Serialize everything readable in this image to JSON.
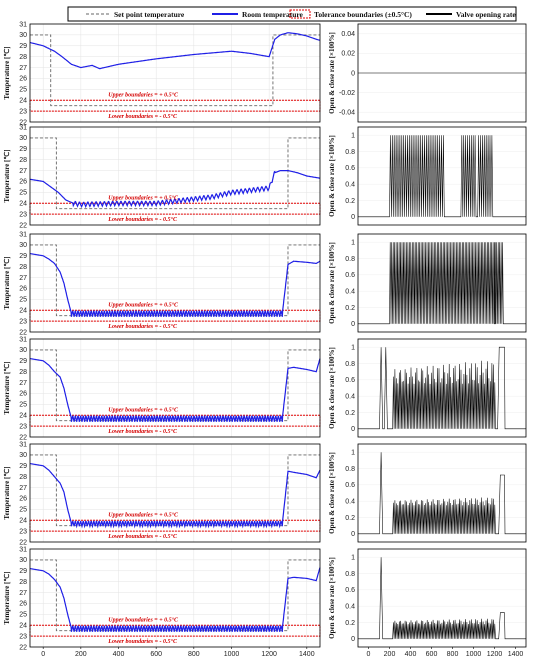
{
  "legend": {
    "items": [
      {
        "label": "Set point temperature",
        "style": "dashed",
        "color": "#666666"
      },
      {
        "label": "Room temperature",
        "style": "solid",
        "color": "#1f1fe6"
      },
      {
        "label": "Tolerance boundaries (±0.5°C)",
        "style": "box",
        "color": "#e00000"
      },
      {
        "label": "Valve opening rate",
        "style": "solid",
        "color": "#000000"
      }
    ]
  },
  "colors": {
    "setpoint": "#666666",
    "room": "#1f1fe6",
    "tolerance": "#e00000",
    "valve": "#000000"
  },
  "chart_data": [
    {
      "type": "line",
      "panel": "temperature",
      "row": 1,
      "ylabel": "Temperature [℃]",
      "ylim": [
        22,
        31
      ],
      "xlim": [
        -70,
        1470
      ],
      "upper_label": "Upper boundaries = + 0.5°C",
      "lower_label": "Lower boundaries = - 0.5°C",
      "setpoint": {
        "x": [
          -70,
          40,
          40,
          250,
          1220,
          1220,
          1470
        ],
        "y": [
          30,
          30,
          23.5,
          23.5,
          23.5,
          30,
          30
        ]
      },
      "tolerance": [
        24,
        23
      ],
      "room": {
        "x": [
          -70,
          0,
          60,
          100,
          150,
          200,
          260,
          300,
          400,
          600,
          800,
          1000,
          1100,
          1200,
          1230,
          1260,
          1300,
          1350,
          1400,
          1450,
          1470
        ],
        "y": [
          29.3,
          29,
          28.5,
          28,
          27.3,
          27,
          27.2,
          26.9,
          27.3,
          27.8,
          28.2,
          28.5,
          28.3,
          28,
          29.6,
          30,
          30.2,
          30.1,
          29.9,
          29.6,
          29.5
        ]
      }
    },
    {
      "type": "line",
      "panel": "valve",
      "row": 1,
      "ylabel": "Open & close rate [×100%]",
      "ylim": [
        -0.05,
        0.05
      ],
      "yticks": [
        -0.04,
        -0.02,
        0,
        0.02,
        0.04
      ],
      "valve": {
        "pattern": "zero"
      }
    },
    {
      "type": "line",
      "panel": "temperature",
      "row": 2,
      "ylabel": "Temperature [℃]",
      "ylim": [
        22,
        31
      ],
      "xlim": [
        -70,
        1470
      ],
      "upper_label": "Upper boundaries = + 0.5°C",
      "lower_label": "Lower boundaries = - 0.5°C",
      "setpoint": {
        "x": [
          -70,
          70,
          70,
          1300,
          1300,
          1470
        ],
        "y": [
          30,
          30,
          23.5,
          23.5,
          30,
          30
        ]
      },
      "tolerance": [
        24,
        23
      ],
      "room": {
        "x": [
          -70,
          0,
          40,
          80,
          120,
          160,
          200,
          400,
          600,
          700,
          800,
          900,
          1000,
          1100,
          1200,
          1230,
          1260,
          1300,
          1350,
          1400,
          1470
        ],
        "y": [
          26.2,
          26,
          25.5,
          25,
          24.3,
          24,
          23.9,
          24,
          24,
          24.2,
          24.4,
          24.6,
          25,
          25.2,
          25.4,
          26.8,
          27,
          27,
          26.8,
          26.5,
          26.3
        ]
      },
      "room_ripple": {
        "from": 160,
        "to": 1230,
        "amp": 0.22,
        "period": 22
      }
    },
    {
      "type": "line",
      "panel": "valve",
      "row": 2,
      "ylabel": "Open & close rate [×100%]",
      "ylim": [
        -0.1,
        1.1
      ],
      "yticks": [
        0,
        0.2,
        0.4,
        0.6,
        0.8,
        1
      ],
      "valve": {
        "pattern": "bursts",
        "segments": [
          [
            200,
            720,
            1.0,
            1.0
          ],
          [
            880,
            1010,
            1.0,
            1.0
          ],
          [
            1040,
            1180,
            1.0,
            1.0
          ]
        ],
        "period": 18
      }
    },
    {
      "type": "line",
      "panel": "temperature",
      "row": 3,
      "ylabel": "Temperature [℃]",
      "ylim": [
        22,
        31
      ],
      "xlim": [
        -70,
        1470
      ],
      "upper_label": "Upper boundaries = + 0.5°C",
      "lower_label": "Lower boundaries = - 0.5°C",
      "setpoint": {
        "x": [
          -70,
          70,
          70,
          1300,
          1300,
          1470
        ],
        "y": [
          30,
          30,
          23.5,
          23.5,
          30,
          30
        ]
      },
      "tolerance": [
        24,
        23
      ],
      "room": {
        "x": [
          -70,
          0,
          30,
          60,
          90,
          110,
          130,
          150,
          1270,
          1300,
          1330,
          1400,
          1450,
          1470
        ],
        "y": [
          29.2,
          29,
          28.7,
          28.3,
          27.5,
          26.5,
          25,
          23.7,
          23.7,
          28.2,
          28.5,
          28.4,
          28.3,
          28.5
        ]
      },
      "room_ripple": {
        "from": 150,
        "to": 1270,
        "amp": 0.3,
        "period": 14
      }
    },
    {
      "type": "line",
      "panel": "valve",
      "row": 3,
      "ylabel": "Open & close rate [×100%]",
      "ylim": [
        -0.1,
        1.1
      ],
      "yticks": [
        0,
        0.2,
        0.4,
        0.6,
        0.8,
        1
      ],
      "valve": {
        "pattern": "bursts",
        "segments": [
          [
            200,
            1200,
            1.0,
            1.0
          ],
          [
            1200,
            1280,
            1.0,
            1.0
          ]
        ],
        "period": 14
      }
    },
    {
      "type": "line",
      "panel": "temperature",
      "row": 4,
      "ylabel": "Temperature [℃]",
      "ylim": [
        22,
        31
      ],
      "xlim": [
        -70,
        1470
      ],
      "upper_label": "Upper boundaries = + 0.5°C",
      "lower_label": "Lower boundaries = - 0.5°C",
      "setpoint": {
        "x": [
          -70,
          70,
          70,
          1300,
          1300,
          1470
        ],
        "y": [
          30,
          30,
          23.5,
          23.5,
          30,
          30
        ]
      },
      "tolerance": [
        24,
        23
      ],
      "room": {
        "x": [
          -70,
          0,
          30,
          60,
          90,
          110,
          130,
          150,
          1270,
          1300,
          1330,
          1400,
          1450,
          1470
        ],
        "y": [
          29.2,
          29,
          28.6,
          28,
          27.5,
          26.5,
          25,
          23.7,
          23.7,
          28.3,
          28.4,
          28.2,
          28,
          29.2
        ]
      },
      "room_ripple": {
        "from": 150,
        "to": 1270,
        "amp": 0.3,
        "period": 14
      }
    },
    {
      "type": "line",
      "panel": "valve",
      "row": 4,
      "ylabel": "Open & close rate [×100%]",
      "ylim": [
        -0.1,
        1.1
      ],
      "yticks": [
        0,
        0.2,
        0.4,
        0.6,
        0.8,
        1
      ],
      "valve": {
        "pattern": "mixed",
        "peaks": [
          [
            120,
            1.0
          ],
          [
            165,
            1.0
          ]
        ],
        "segments": [
          [
            230,
            1200,
            0.55,
            0.85
          ]
        ],
        "plateau": [
          1230,
          1300,
          1.0
        ],
        "period": 14
      }
    },
    {
      "type": "line",
      "panel": "temperature",
      "row": 5,
      "ylabel": "Temperature [℃]",
      "ylim": [
        22,
        31
      ],
      "xlim": [
        -70,
        1470
      ],
      "upper_label": "Upper boundaries = + 0.5°C",
      "lower_label": "Lower boundaries = - 0.5°C",
      "setpoint": {
        "x": [
          -70,
          70,
          70,
          1300,
          1300,
          1470
        ],
        "y": [
          30,
          30,
          23.5,
          23.5,
          30,
          30
        ]
      },
      "tolerance": [
        24,
        23
      ],
      "room": {
        "x": [
          -70,
          0,
          30,
          60,
          90,
          110,
          130,
          150,
          1270,
          1300,
          1330,
          1400,
          1450,
          1470
        ],
        "y": [
          29.2,
          29,
          28.6,
          28,
          27.4,
          26.6,
          25,
          23.7,
          23.7,
          28.5,
          28.4,
          28.2,
          27.9,
          28.6
        ]
      },
      "room_ripple": {
        "from": 150,
        "to": 1270,
        "amp": 0.25,
        "period": 14
      }
    },
    {
      "type": "line",
      "panel": "valve",
      "row": 5,
      "ylabel": "Open & close rate [×100%]",
      "ylim": [
        -0.1,
        1.1
      ],
      "yticks": [
        0,
        0.2,
        0.4,
        0.6,
        0.8,
        1
      ],
      "valve": {
        "pattern": "mixed",
        "peaks": [
          [
            120,
            1.0
          ]
        ],
        "segments": [
          [
            230,
            1200,
            0.35,
            0.45
          ]
        ],
        "plateau": [
          1240,
          1300,
          0.72
        ],
        "period": 14
      }
    },
    {
      "type": "line",
      "panel": "temperature",
      "row": 6,
      "ylabel": "Temperature [℃]",
      "ylim": [
        22,
        31
      ],
      "xlim": [
        -70,
        1470
      ],
      "xticks": [
        0,
        200,
        400,
        600,
        800,
        1000,
        1200,
        1400
      ],
      "xlabel": "Time [min]",
      "upper_label": "Upper boundaries = + 0.5°C",
      "lower_label": "Lower boundaries = - 0.5°C",
      "setpoint": {
        "x": [
          -70,
          70,
          70,
          1300,
          1300,
          1470
        ],
        "y": [
          30,
          30,
          23.5,
          23.5,
          30,
          30
        ]
      },
      "tolerance": [
        24,
        23
      ],
      "room": {
        "x": [
          -70,
          0,
          30,
          60,
          90,
          110,
          130,
          150,
          1270,
          1300,
          1330,
          1400,
          1450,
          1470
        ],
        "y": [
          29.2,
          29,
          28.7,
          28.2,
          27.5,
          26.5,
          25,
          23.7,
          23.7,
          28.3,
          28.4,
          28.3,
          28.1,
          29.3
        ]
      },
      "room_ripple": {
        "from": 150,
        "to": 1270,
        "amp": 0.3,
        "period": 14
      }
    },
    {
      "type": "line",
      "panel": "valve",
      "row": 6,
      "ylabel": "Open & close rate [×100%]",
      "ylim": [
        -0.1,
        1.1
      ],
      "yticks": [
        0,
        0.2,
        0.4,
        0.6,
        0.8,
        1
      ],
      "xticks": [
        0,
        200,
        400,
        600,
        800,
        1000,
        1200,
        1400
      ],
      "xlabel": "Time [min]",
      "valve": {
        "pattern": "mixed",
        "peaks": [
          [
            120,
            1.0
          ]
        ],
        "segments": [
          [
            230,
            1200,
            0.18,
            0.25
          ]
        ],
        "plateau": [
          1240,
          1300,
          0.32
        ],
        "period": 14
      }
    }
  ]
}
